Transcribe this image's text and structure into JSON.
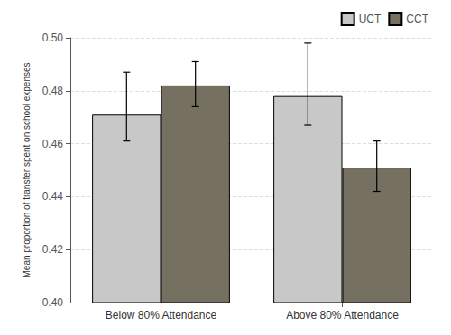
{
  "chart_data": {
    "type": "bar",
    "categories": [
      "Below 80% Attendance",
      "Above 80% Attendance"
    ],
    "series": [
      {
        "name": "UCT",
        "color": "#c8c8c8",
        "values": [
          0.471,
          0.478
        ],
        "err_lower": [
          0.01,
          0.011
        ],
        "err_upper": [
          0.016,
          0.02
        ]
      },
      {
        "name": "CCT",
        "color": "#757060",
        "values": [
          0.482,
          0.451
        ],
        "err_lower": [
          0.008,
          0.009
        ],
        "err_upper": [
          0.009,
          0.01
        ]
      }
    ],
    "ylabel": "Mean proportion of transfer spent on school expenses",
    "ylim": [
      0.4,
      0.5
    ],
    "yticks": [
      {
        "value": 0.4,
        "label": "0.40"
      },
      0.42,
      0.44,
      0.46,
      0.48,
      {
        "value": 0.5,
        "label": "0.50"
      }
    ],
    "grid": true,
    "legend": "upper right"
  }
}
